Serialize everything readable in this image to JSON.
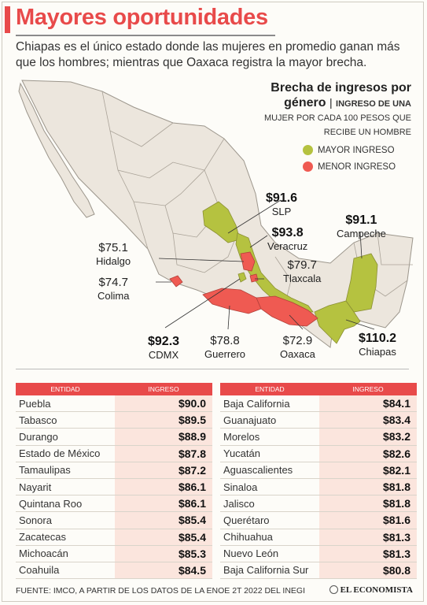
{
  "header": {
    "title": "Mayores oportunidades",
    "subtitle": "Chiapas es el único estado donde las mujeres en promedio ganan más que los hombres; mientras que Oaxaca registra la mayor brecha."
  },
  "legend": {
    "title_line1": "Brecha de ingresos por",
    "title_line2": "género",
    "sub_line1": "INGRESO DE UNA",
    "sub_line2": "MUJER POR CADA 100 PESOS QUE",
    "sub_line3": "RECIBE UN HOMBRE",
    "items": [
      {
        "label": "MAYOR INGRESO",
        "color": "#b5c240"
      },
      {
        "label": "MENOR INGRESO",
        "color": "#ef5a52"
      }
    ]
  },
  "colors": {
    "accent": "#e84a4a",
    "green": "#b5c240",
    "red": "#ef5a52",
    "land": "#ece6dd"
  },
  "map_labels": [
    {
      "value": "$91.6",
      "name": "SLP"
    },
    {
      "value": "$93.8",
      "name": "Veracruz"
    },
    {
      "value": "$91.1",
      "name": "Campeche"
    },
    {
      "value": "$75.1",
      "name": "Hidalgo"
    },
    {
      "value": "$79.7",
      "name": "Tlaxcala"
    },
    {
      "value": "$74.7",
      "name": "Colima"
    },
    {
      "value": "$92.3",
      "name": "CDMX"
    },
    {
      "value": "$78.8",
      "name": "Guerrero"
    },
    {
      "value": "$72.9",
      "name": "Oaxaca"
    },
    {
      "value": "$110.2",
      "name": "Chiapas"
    }
  ],
  "table_headers": {
    "entity": "ENTIDAD",
    "income": "INGRESO"
  },
  "table_left": [
    {
      "entity": "Puebla",
      "income": "$90.0"
    },
    {
      "entity": "Tabasco",
      "income": "$89.5"
    },
    {
      "entity": "Durango",
      "income": "$88.9"
    },
    {
      "entity": "Estado de México",
      "income": "$87.8"
    },
    {
      "entity": "Tamaulipas",
      "income": "$87.2"
    },
    {
      "entity": "Nayarit",
      "income": "$86.1"
    },
    {
      "entity": "Quintana Roo",
      "income": "$86.1"
    },
    {
      "entity": "Sonora",
      "income": "$85.4"
    },
    {
      "entity": "Zacatecas",
      "income": "$85.4"
    },
    {
      "entity": "Michoacán",
      "income": "$85.3"
    },
    {
      "entity": "Coahuila",
      "income": "$84.5"
    }
  ],
  "table_right": [
    {
      "entity": "Baja California",
      "income": "$84.1"
    },
    {
      "entity": "Guanajuato",
      "income": "$83.4"
    },
    {
      "entity": "Morelos",
      "income": "$83.2"
    },
    {
      "entity": "Yucatán",
      "income": "$82.6"
    },
    {
      "entity": "Aguascalientes",
      "income": "$82.1"
    },
    {
      "entity": "Sinaloa",
      "income": "$81.8"
    },
    {
      "entity": "Jalisco",
      "income": "$81.8"
    },
    {
      "entity": "Querétaro",
      "income": "$81.6"
    },
    {
      "entity": "Chihuahua",
      "income": "$81.3"
    },
    {
      "entity": "Nuevo León",
      "income": "$81.3"
    },
    {
      "entity": "Baja California Sur",
      "income": "$80.8"
    }
  ],
  "footer": {
    "source": "FUENTE: IMCO, A PARTIR DE LOS DATOS DE LA ENOE 2T 2022 DEL INEGI",
    "brand": "EL ECONOMISTA"
  }
}
